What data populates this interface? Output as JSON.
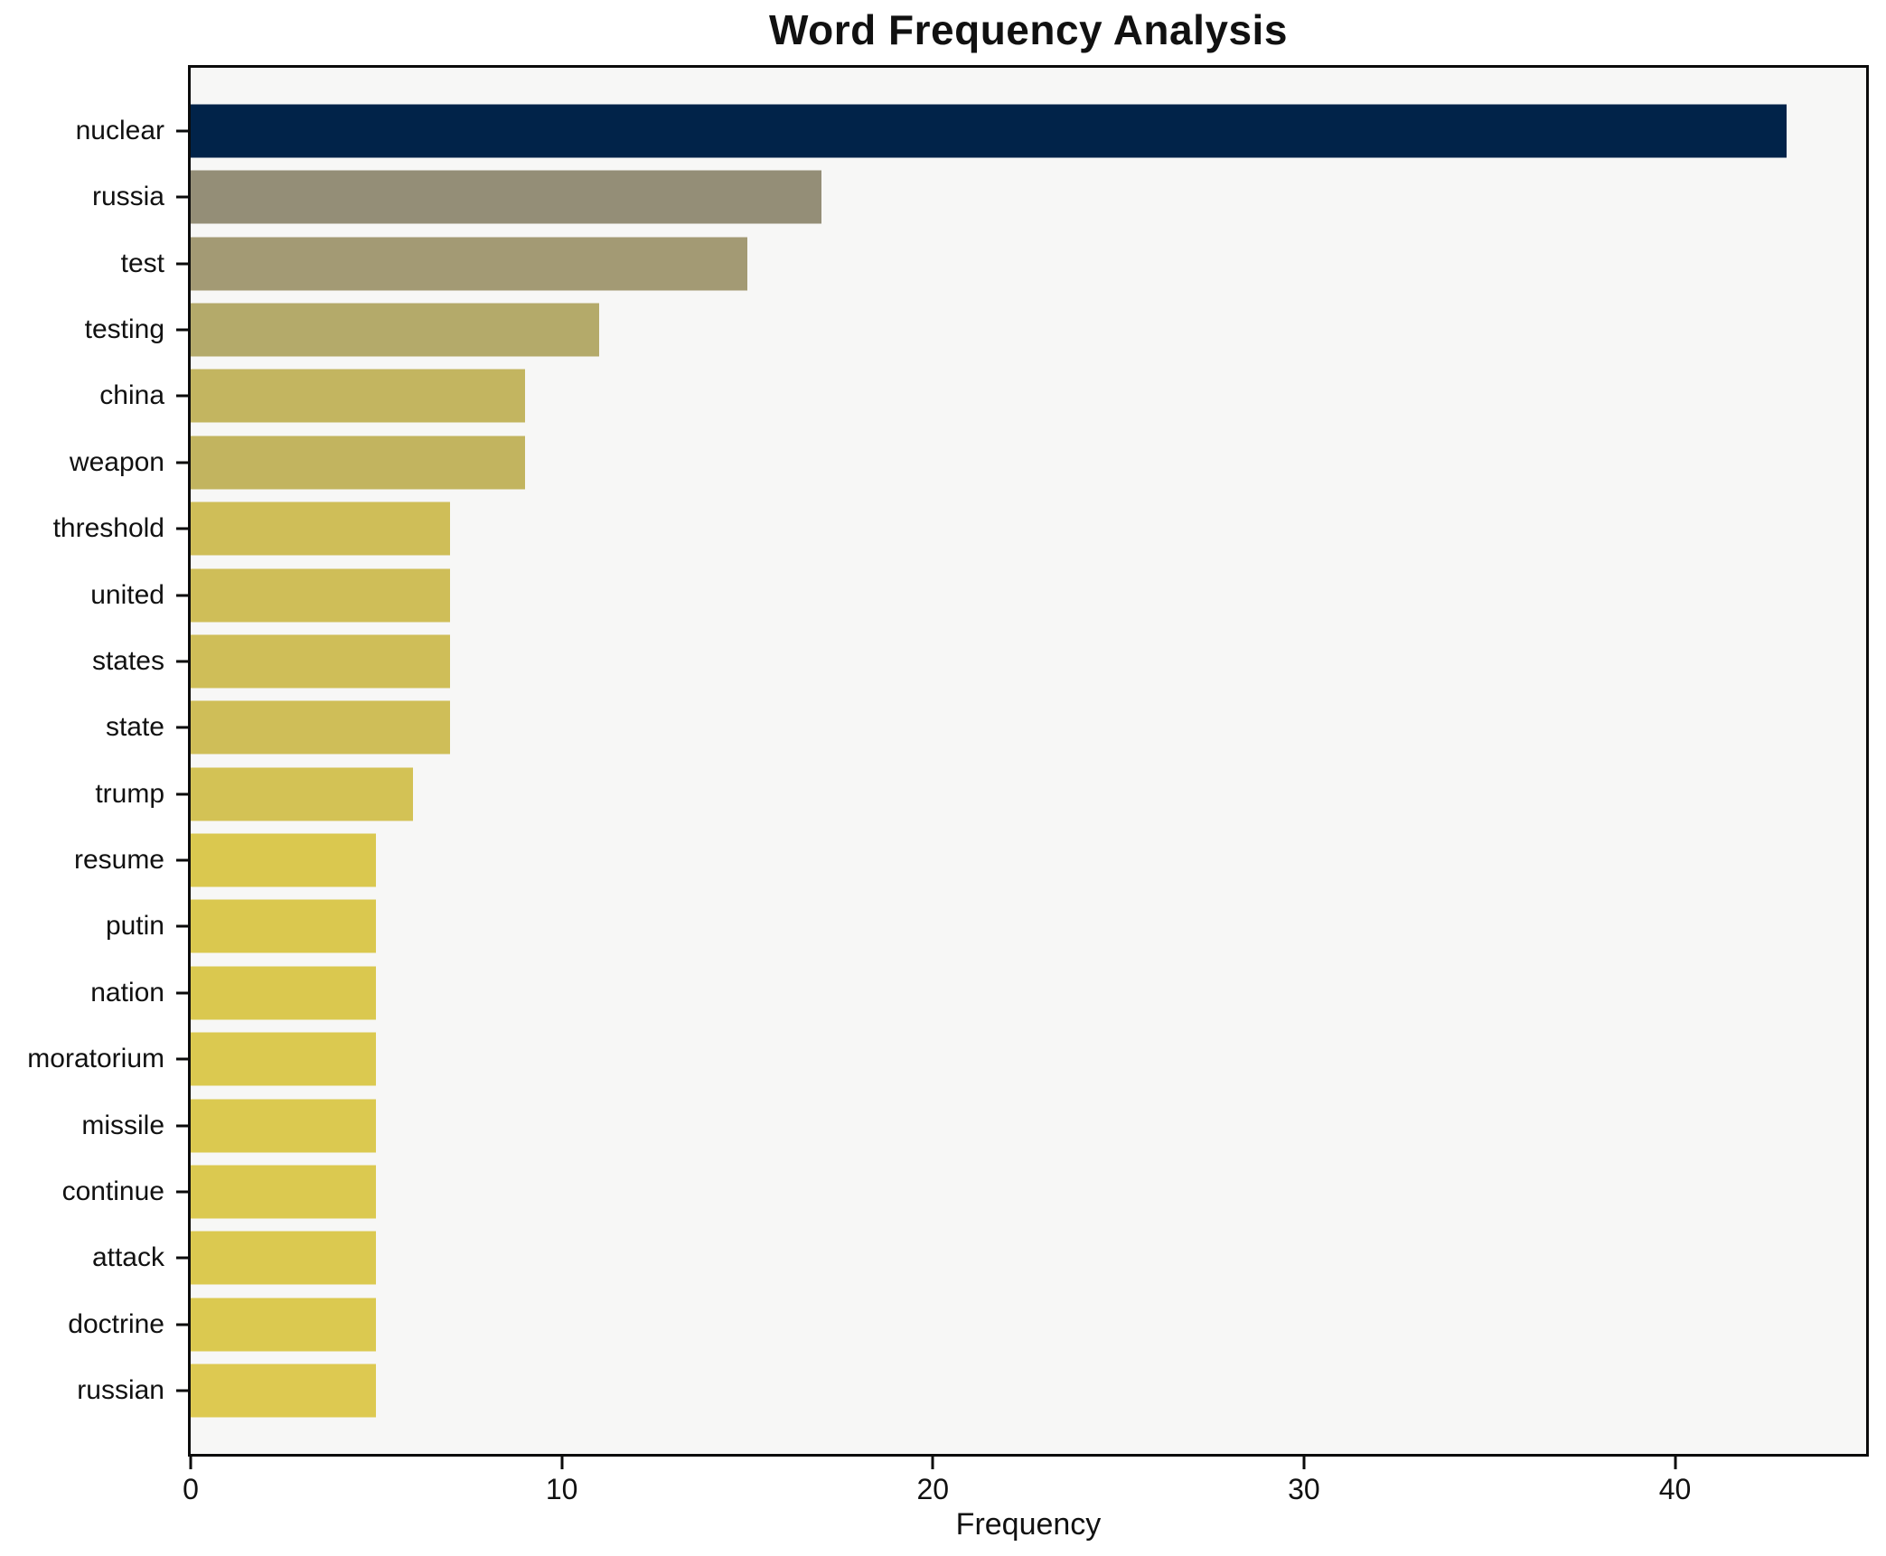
{
  "figure": {
    "title": "Word Frequency Analysis",
    "xlabel": "Frequency"
  },
  "chart_data": {
    "type": "bar",
    "orientation": "horizontal",
    "title": "Word Frequency Analysis",
    "xlabel": "Frequency",
    "ylabel": "",
    "categories": [
      "nuclear",
      "russia",
      "test",
      "testing",
      "china",
      "weapon",
      "threshold",
      "united",
      "states",
      "state",
      "trump",
      "resume",
      "putin",
      "nation",
      "moratorium",
      "missile",
      "continue",
      "attack",
      "doctrine",
      "russian"
    ],
    "values": [
      43,
      17,
      15,
      11,
      9,
      9,
      7,
      7,
      7,
      7,
      6,
      5,
      5,
      5,
      5,
      5,
      5,
      5,
      5,
      5
    ],
    "bar_colors": [
      "#012349",
      "#948e77",
      "#a39a74",
      "#b4aa6a",
      "#c3b560",
      "#c2b45f",
      "#cfbe58",
      "#cfbe58",
      "#cfbe58",
      "#cfbe58",
      "#d3c255",
      "#dac84f",
      "#dac84f",
      "#dac84f",
      "#dbc950",
      "#dbc950",
      "#dbc950",
      "#dbc950",
      "#dbc950",
      "#ddc951"
    ],
    "xticks": [
      0,
      10,
      20,
      30,
      40
    ],
    "xlim": [
      0,
      45.15
    ],
    "grid": false,
    "legend_position": "none",
    "plot_background": "#f7f7f6",
    "frame_color": "#0b0b0b"
  }
}
